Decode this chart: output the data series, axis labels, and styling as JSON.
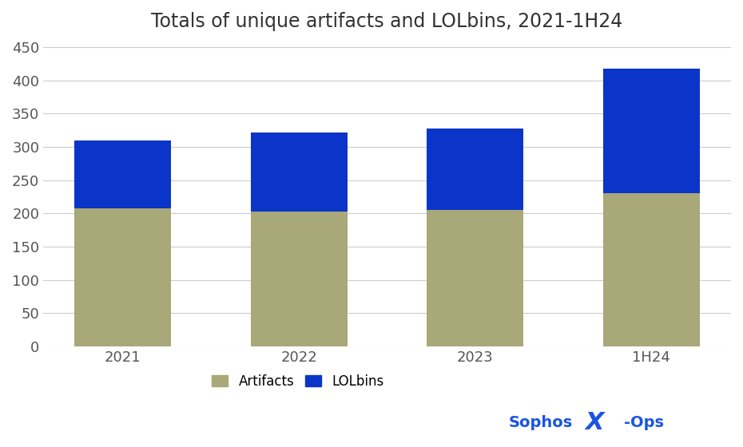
{
  "categories": [
    "2021",
    "2022",
    "2023",
    "1H24"
  ],
  "artifacts": [
    207,
    203,
    205,
    230
  ],
  "lolbins": [
    103,
    118,
    123,
    188
  ],
  "artifact_color": "#a8a878",
  "lolbin_color": "#0a35c8",
  "title": "Totals of unique artifacts and LOLbins, 2021-1H24",
  "title_fontsize": 17,
  "tick_fontsize": 13,
  "legend_fontsize": 12,
  "ylim": [
    0,
    460
  ],
  "yticks": [
    0,
    50,
    100,
    150,
    200,
    250,
    300,
    350,
    400,
    450
  ],
  "background_color": "#ffffff",
  "grid_color": "#cccccc",
  "sophos_color": "#1a55e0",
  "bar_width": 0.55
}
